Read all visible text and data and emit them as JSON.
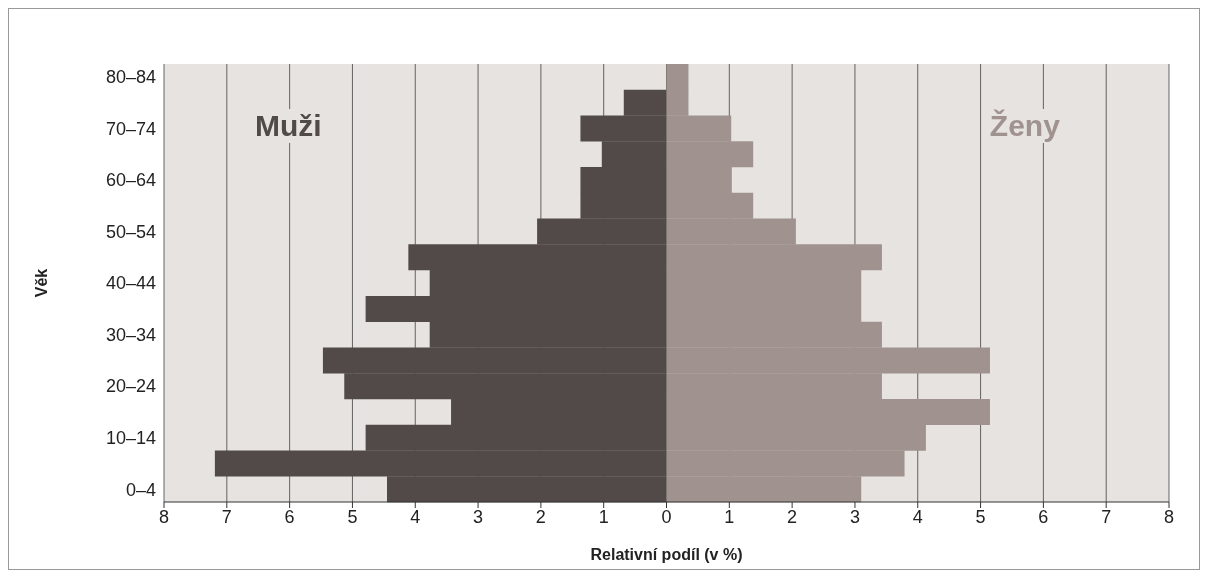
{
  "chart_data": {
    "type": "bar",
    "orientation": "horizontal",
    "xlabel": "Relativní podíl (v %)",
    "ylabel": "Věk",
    "categories": [
      "80–84",
      null,
      "70–74",
      null,
      "60–64",
      null,
      "50–54",
      null,
      "40–44",
      null,
      "30–34",
      null,
      "20–24",
      null,
      "10–14",
      null,
      "0–4"
    ],
    "series": [
      {
        "name": "Muži",
        "color": "#524a48",
        "values": [
          null,
          -0.68,
          -1.37,
          -1.03,
          -1.37,
          -1.37,
          -2.06,
          -4.11,
          -3.77,
          -4.79,
          -3.77,
          -5.47,
          -5.13,
          -3.43,
          -4.79,
          -7.19,
          -4.45
        ]
      },
      {
        "name": "Ženy",
        "color": "#a0938f",
        "values": [
          0.35,
          0.35,
          1.03,
          1.38,
          1.04,
          1.38,
          2.06,
          3.43,
          3.1,
          3.1,
          3.43,
          5.15,
          3.43,
          5.15,
          4.13,
          3.79,
          3.1
        ]
      }
    ],
    "xlim": [
      -8,
      8
    ],
    "xticks": [
      {
        "value": -8,
        "label": "8"
      },
      {
        "value": -7,
        "label": "7"
      },
      {
        "value": -6,
        "label": "6"
      },
      {
        "value": -5,
        "label": "5"
      },
      {
        "value": -4,
        "label": "4"
      },
      {
        "value": -3,
        "label": "3"
      },
      {
        "value": -2,
        "label": "2"
      },
      {
        "value": -1,
        "label": "1"
      },
      0,
      1,
      2,
      3,
      4,
      5,
      6,
      7,
      8
    ],
    "grid": "x",
    "legend": false,
    "stacked": true
  }
}
